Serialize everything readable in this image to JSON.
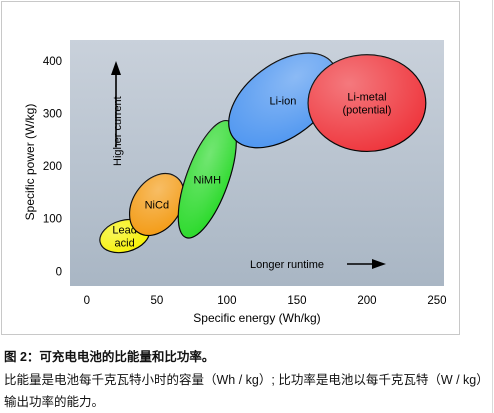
{
  "chart_data": {
    "type": "scatter",
    "xlabel": "Specific energy (Wh/kg)",
    "ylabel": "Specific power (W/kg)",
    "xlim": [
      -12,
      255
    ],
    "ylim": [
      -28,
      440
    ],
    "xticks": [
      0,
      50,
      100,
      150,
      200,
      250
    ],
    "yticks": [
      0,
      100,
      200,
      300,
      400
    ],
    "grid": false,
    "background": "#b9c3cf",
    "regions": [
      {
        "label_lines": [
          "Lead",
          "acid"
        ],
        "cx": 27,
        "cy": 67,
        "rx": 18,
        "ry": 30,
        "rotate": -15,
        "color": "#f6f100"
      },
      {
        "label_lines": [
          "NiCd"
        ],
        "cx": 50,
        "cy": 127,
        "rx": 17,
        "ry": 64,
        "rotate": 34,
        "color": "#f39a12"
      },
      {
        "label_lines": [
          "NiMH"
        ],
        "cx": 86,
        "cy": 175,
        "rx": 15,
        "ry": 118,
        "rotate": 20,
        "color": "#27d927"
      },
      {
        "label_lines": [
          "Li-ion"
        ],
        "cx": 140,
        "cy": 325,
        "rx": 26,
        "ry": 118,
        "rotate": 53,
        "color": "#4d95f0"
      },
      {
        "label_lines": [
          "Li-metal",
          "(potential)"
        ],
        "cx": 200,
        "cy": 320,
        "rx": 42,
        "ry": 92,
        "rotate": 0,
        "color": "#ee3138"
      }
    ],
    "annotations": [
      {
        "text": "Higher current",
        "direction": "up"
      },
      {
        "text": "Longer runtime",
        "direction": "right"
      }
    ]
  },
  "caption": {
    "title": "图 2：可充电电池的比能量和比功率。",
    "body": "比能量是电池每千克瓦特小时的容量（Wh / kg）; 比功率是电池以每千克瓦特（W / kg）输出功率的能力。"
  }
}
